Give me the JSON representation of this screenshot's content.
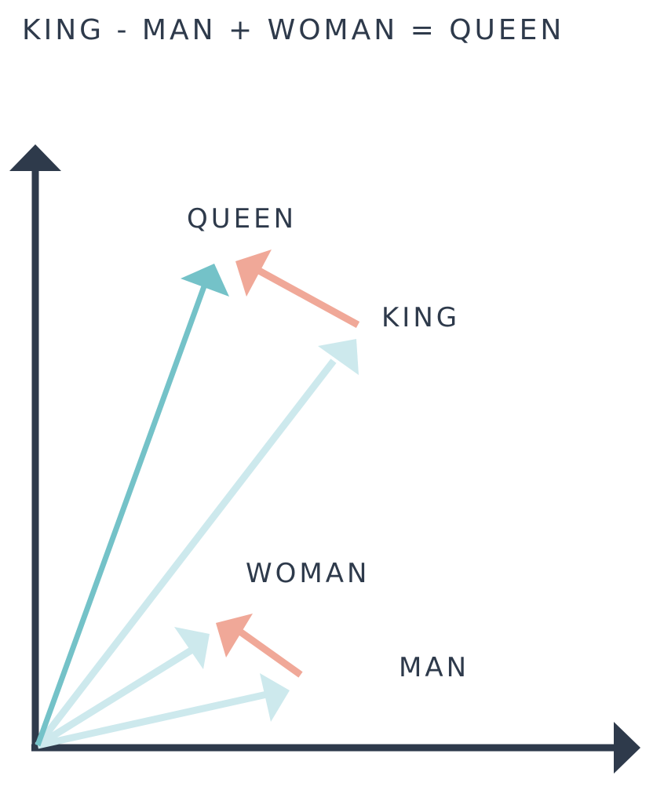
{
  "title": "KING - MAN + WOMAN = QUEEN",
  "labels": {
    "queen": "QUEEN",
    "king": "KING",
    "woman": "WOMAN",
    "man": "MAN"
  },
  "colors": {
    "axis": "#2e3a4b",
    "queen_vector": "#74c2c8",
    "light_vector": "#cde9ed",
    "offset_vector": "#f0a898"
  }
}
